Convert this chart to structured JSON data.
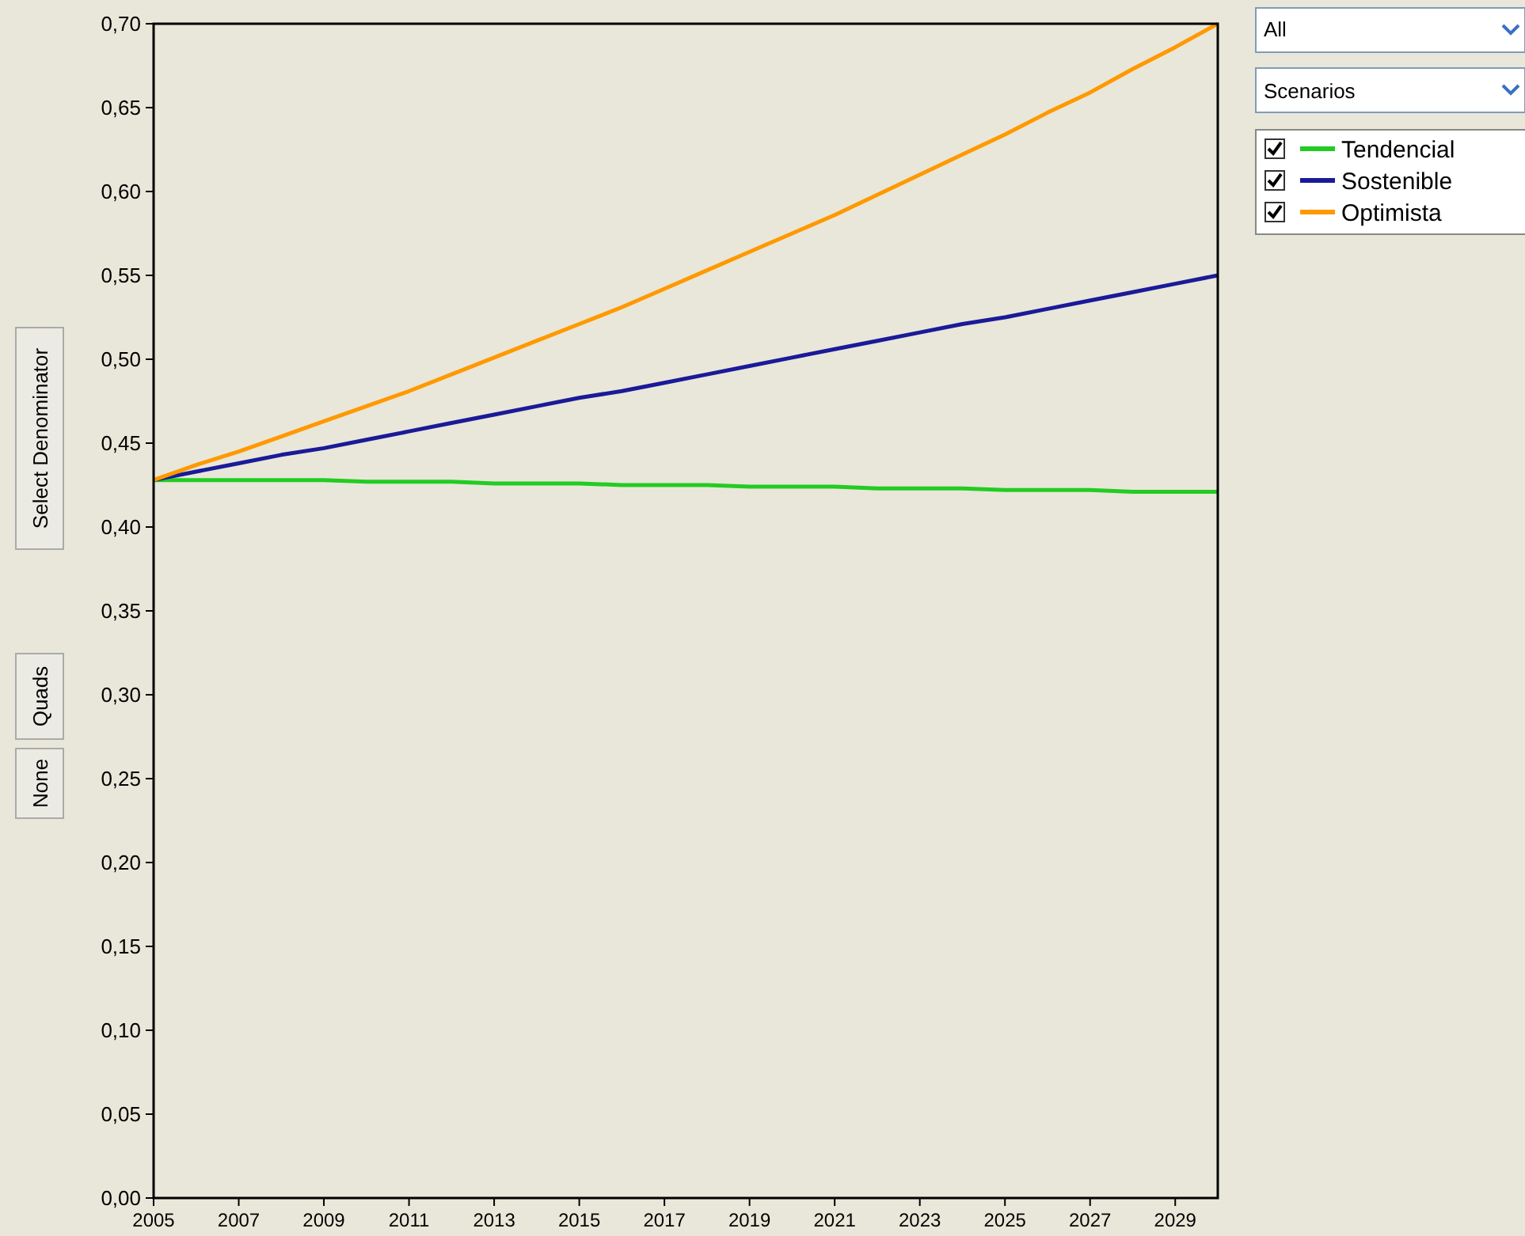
{
  "chart_data": {
    "type": "line",
    "x": [
      2005,
      2006,
      2007,
      2008,
      2009,
      2010,
      2011,
      2012,
      2013,
      2014,
      2015,
      2016,
      2017,
      2018,
      2019,
      2020,
      2021,
      2022,
      2023,
      2024,
      2025,
      2026,
      2027,
      2028,
      2029,
      2030
    ],
    "series": [
      {
        "name": "Tendencial",
        "color": "#22cc22",
        "values": [
          0.428,
          0.428,
          0.428,
          0.428,
          0.428,
          0.427,
          0.427,
          0.427,
          0.426,
          0.426,
          0.426,
          0.425,
          0.425,
          0.425,
          0.424,
          0.424,
          0.424,
          0.423,
          0.423,
          0.423,
          0.422,
          0.422,
          0.422,
          0.421,
          0.421,
          0.421
        ]
      },
      {
        "name": "Sostenible",
        "color": "#1a1a99",
        "values": [
          0.428,
          0.433,
          0.438,
          0.443,
          0.447,
          0.452,
          0.457,
          0.462,
          0.467,
          0.472,
          0.477,
          0.481,
          0.486,
          0.491,
          0.496,
          0.501,
          0.506,
          0.511,
          0.516,
          0.521,
          0.525,
          0.53,
          0.535,
          0.54,
          0.545,
          0.55
        ]
      },
      {
        "name": "Optimista",
        "color": "#ff9900",
        "values": [
          0.428,
          0.437,
          0.445,
          0.454,
          0.463,
          0.472,
          0.481,
          0.491,
          0.501,
          0.511,
          0.521,
          0.531,
          0.542,
          0.553,
          0.564,
          0.575,
          0.586,
          0.598,
          0.61,
          0.622,
          0.634,
          0.647,
          0.659,
          0.673,
          0.686,
          0.7
        ]
      }
    ],
    "xlim": [
      2005,
      2030
    ],
    "xticks": [
      2005,
      2007,
      2009,
      2011,
      2013,
      2015,
      2017,
      2019,
      2021,
      2023,
      2025,
      2027,
      2029
    ],
    "ylim": [
      0,
      0.7
    ],
    "yticks": [
      {
        "value": 0,
        "label": "0,00"
      },
      {
        "value": 0.05,
        "label": "0,05"
      },
      {
        "value": 0.1,
        "label": "0,10"
      },
      {
        "value": 0.15,
        "label": "0,15"
      },
      {
        "value": 0.2,
        "label": "0,20"
      },
      {
        "value": 0.25,
        "label": "0,25"
      },
      {
        "value": 0.3,
        "label": "0,30"
      },
      {
        "value": 0.35,
        "label": "0,35"
      },
      {
        "value": 0.4,
        "label": "0,40"
      },
      {
        "value": 0.45,
        "label": "0,45"
      },
      {
        "value": 0.5,
        "label": "0,50"
      },
      {
        "value": 0.55,
        "label": "0,55"
      },
      {
        "value": 0.6,
        "label": "0,60"
      },
      {
        "value": 0.65,
        "label": "0,65"
      },
      {
        "value": 0.7,
        "label": "0,70"
      }
    ],
    "grid": false,
    "legend": "top right",
    "marker": "none",
    "line_style": "solid",
    "annotations": [
      "All",
      "Scenarios",
      "Select Denominator",
      "Quads",
      "None"
    ]
  }
}
